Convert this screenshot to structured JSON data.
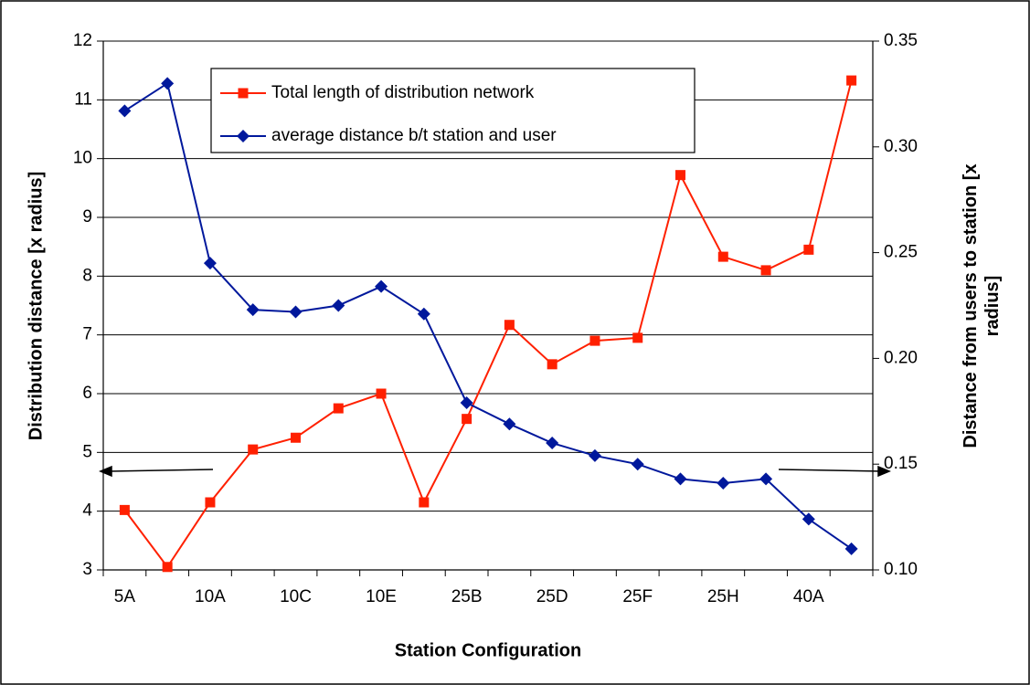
{
  "chart_data": {
    "type": "line",
    "x_label": "Station Configuration",
    "y_label": "Distribution distance [x radius]",
    "y2_label": "Distance from users to station [x radius]",
    "categories": [
      "5A",
      null,
      "10A",
      null,
      "10C",
      null,
      "10E",
      null,
      "25B",
      null,
      "25D",
      null,
      "25F",
      null,
      "25H",
      null,
      "40A",
      null
    ],
    "series": [
      {
        "name": "Total length of distribution network",
        "color": "#ff2000",
        "marker": "square",
        "values": [
          4.02,
          3.05,
          4.15,
          5.05,
          5.25,
          5.75,
          6.0,
          4.15,
          5.57,
          7.17,
          6.5,
          6.9,
          6.95,
          9.72,
          8.33,
          8.1,
          8.45,
          11.33
        ]
      },
      {
        "name": "average distance b/t station and user",
        "color": "#00189c",
        "marker": "diamond",
        "axis": "y2",
        "values": [
          0.317,
          0.33,
          0.245,
          0.223,
          0.222,
          0.225,
          0.234,
          0.221,
          0.179,
          0.169,
          0.16,
          0.154,
          0.15,
          0.143,
          0.141,
          0.143,
          0.124,
          0.11
        ]
      }
    ],
    "ylim": [
      3,
      12
    ],
    "yticks": [
      3,
      4,
      5,
      6,
      7,
      8,
      9,
      10,
      11,
      12
    ],
    "y2lim": [
      0.1,
      0.35
    ],
    "y2ticks": [
      {
        "value": 0.1,
        "label": "0.10"
      },
      0.15,
      {
        "value": 0.2,
        "label": "0.20"
      },
      0.25,
      {
        "value": 0.3,
        "label": "0.30"
      },
      0.35
    ],
    "grid": true
  }
}
